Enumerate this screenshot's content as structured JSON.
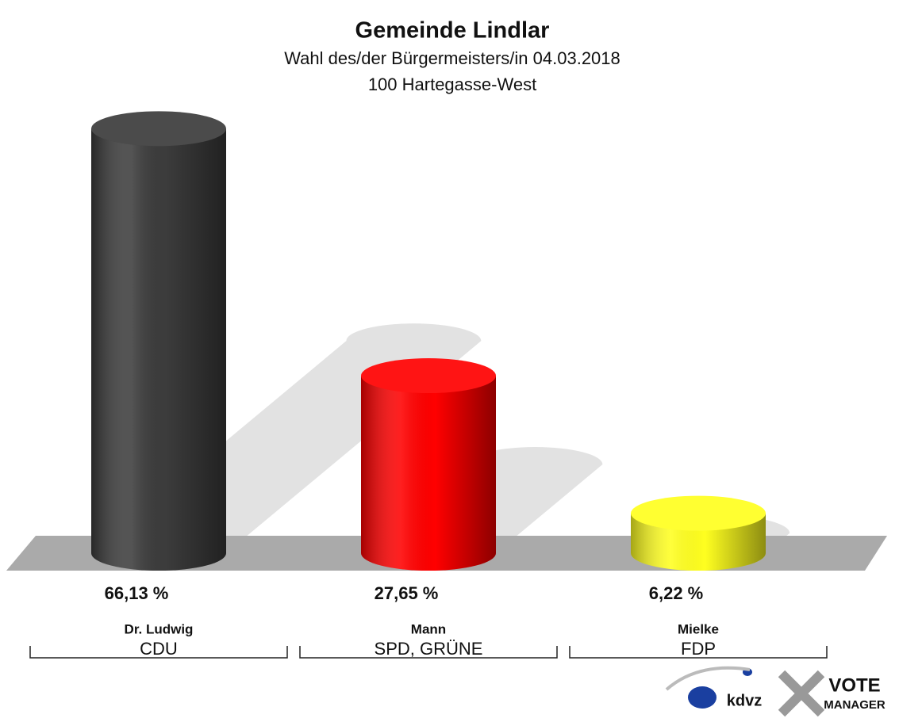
{
  "chart_data": {
    "type": "bar",
    "title": "Gemeinde Lindlar",
    "subtitle": "Wahl des/der Bürgermeisters/in 04.03.2018",
    "district": "100 Hartegasse-West",
    "categories": [
      "Dr. Ludwig",
      "Mann",
      "Mielke"
    ],
    "parties": [
      "CDU",
      "SPD, GRÜNE",
      "FDP"
    ],
    "values": [
      66.13,
      27.65,
      6.22
    ],
    "value_labels": [
      "66,13 %",
      "27,65 %",
      "6,22 %"
    ],
    "colors": [
      "#3c3c3c",
      "#ff0000",
      "#ffff20"
    ]
  },
  "logo": {
    "left": "kdvz",
    "right_top": "VOTE",
    "right_bottom": "MANAGER"
  }
}
